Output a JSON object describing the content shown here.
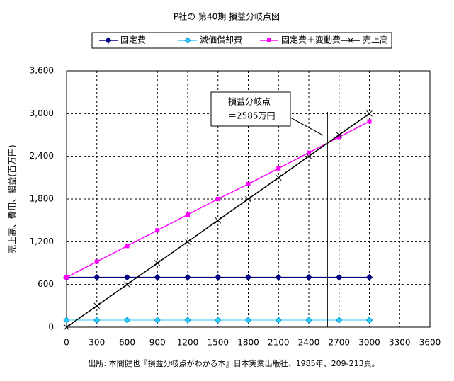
{
  "chart_data": {
    "type": "line",
    "title": "P社の 第40期 損益分岐点図",
    "y_label": "売上高、費用、損益(百万円)",
    "footer": "出所: 本間健也『損益分岐点がわかる本』日本実業出版社、1985年、209-213頁。",
    "x": [
      0,
      300,
      600,
      900,
      1200,
      1500,
      1800,
      2100,
      2400,
      2700,
      3000
    ],
    "series": [
      {
        "name": "固定費",
        "color": "#000080",
        "marker": "diamond",
        "values": [
          700,
          700,
          700,
          700,
          700,
          700,
          700,
          700,
          700,
          700,
          700
        ]
      },
      {
        "name": "減価償却費",
        "color": "#33ccff",
        "marker": "diamond",
        "values": [
          100,
          100,
          100,
          100,
          100,
          100,
          100,
          100,
          100,
          100,
          100
        ]
      },
      {
        "name": "固定費＋変動費",
        "color": "#ff00ff",
        "marker": "square",
        "values": [
          700,
          920,
          1140,
          1360,
          1580,
          1800,
          2010,
          2230,
          2450,
          2670,
          2890
        ]
      },
      {
        "name": "売上高",
        "color": "#000000",
        "marker": "cross",
        "values": [
          0,
          300,
          600,
          900,
          1200,
          1500,
          1800,
          2100,
          2400,
          2700,
          3000
        ]
      }
    ],
    "xlim": [
      0,
      3600
    ],
    "xticks": [
      0,
      300,
      600,
      900,
      1200,
      1500,
      1800,
      2100,
      2400,
      2700,
      3000,
      3300,
      3600
    ],
    "ylim": [
      0,
      3600
    ],
    "yticks": [
      0,
      600,
      {
        "value": 1200,
        "label": "1,200"
      },
      {
        "value": 1800,
        "label": "1,800"
      },
      {
        "value": 2400,
        "label": "2,400"
      },
      {
        "value": 3000,
        "label": "3,000"
      },
      {
        "value": 3600,
        "label": "3,600"
      }
    ],
    "grid": true,
    "annotations": [
      {
        "lines": [
          "損益分岐点",
          "＝2585万円"
        ],
        "x": 2585
      }
    ]
  }
}
